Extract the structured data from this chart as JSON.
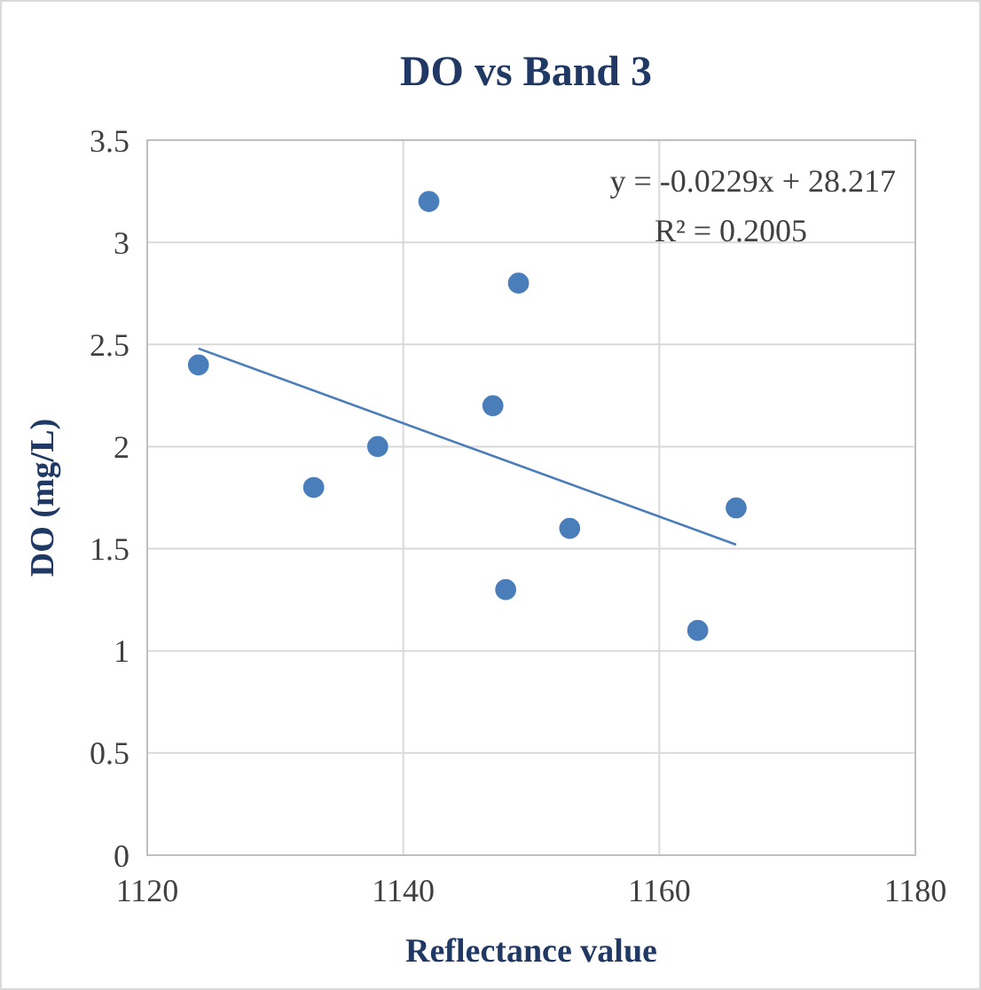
{
  "chart_data": {
    "type": "scatter",
    "title": "DO vs Band 3",
    "xlabel": "Reflectance value",
    "ylabel": "DO  (mg/L)",
    "x": [
      1124,
      1133,
      1138,
      1142,
      1147,
      1149,
      1148,
      1153,
      1163,
      1166
    ],
    "series": [
      {
        "color": "#4a7ebb",
        "values": [
          2.4,
          1.8,
          2.0,
          3.2,
          2.2,
          2.8,
          1.3,
          1.6,
          1.1,
          1.7
        ],
        "marker": "circle"
      },
      {
        "type": "line",
        "color": "#4a7ebb",
        "x": [
          1124,
          1166
        ],
        "values": [
          2.48,
          1.52
        ],
        "marker": "none",
        "line_style": "solid"
      }
    ],
    "xlim": [
      1120,
      1180
    ],
    "xticks": [
      1120,
      1140,
      1160,
      1180
    ],
    "ylim": [
      0,
      3.5
    ],
    "yticks": [
      0,
      0.5,
      1,
      1.5,
      2,
      2.5,
      3,
      3.5
    ],
    "grid": true,
    "annotations": [
      "y = -0.0229x + 28.217",
      "R² = 0.2005"
    ]
  }
}
